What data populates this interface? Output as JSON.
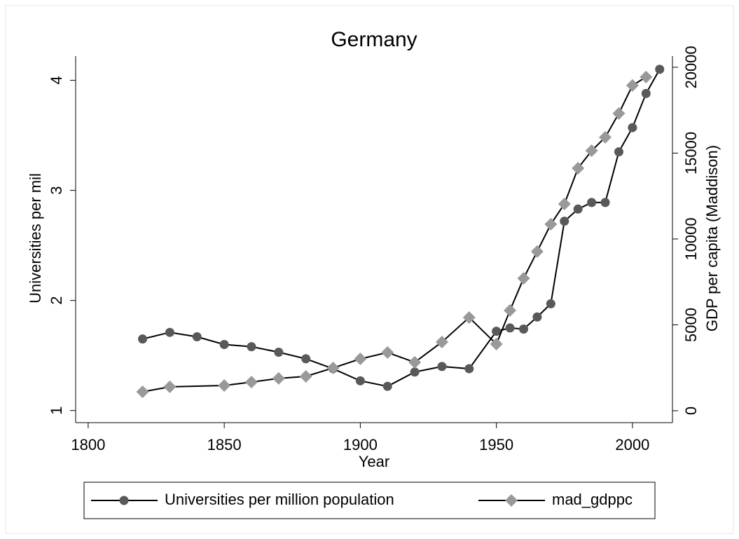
{
  "chart_data": {
    "type": "line",
    "title": "Germany",
    "x_label": "Year",
    "y_label": "Universities per mil",
    "y2_label": "GDP per capita (Maddison)",
    "xlim": [
      1795.4,
      2014.7
    ],
    "xticks": [
      1800,
      1850,
      1900,
      1950,
      2000
    ],
    "ylim": [
      0.89,
      4.22
    ],
    "yticks": [
      1,
      2,
      3,
      4
    ],
    "y2lim": [
      -694,
      20650
    ],
    "y2ticks": [
      0,
      5000,
      10000,
      15000,
      20000
    ],
    "legend": "bottom",
    "series": [
      {
        "name": "Universities per million population",
        "color": "#595959",
        "marker": "circle",
        "x": [
          1820,
          1830,
          1840,
          1850,
          1860,
          1870,
          1880,
          1890,
          1900,
          1910,
          1920,
          1930,
          1940,
          1950,
          1955,
          1960,
          1965,
          1970,
          1975,
          1980,
          1985,
          1990,
          1995,
          2000,
          2005,
          2010
        ],
        "values": [
          1.65,
          1.71,
          1.67,
          1.6,
          1.58,
          1.53,
          1.47,
          1.38,
          1.27,
          1.22,
          1.35,
          1.4,
          1.38,
          1.72,
          1.75,
          1.74,
          1.85,
          1.97,
          2.72,
          2.83,
          2.89,
          2.89,
          3.35,
          3.57,
          3.88,
          4.1
        ]
      },
      {
        "name": "mad_gdppc",
        "color": "#999999",
        "marker": "diamond",
        "axis": "y2",
        "x": [
          1820,
          1830,
          1850,
          1860,
          1870,
          1880,
          1890,
          1900,
          1910,
          1920,
          1930,
          1940,
          1950,
          1955,
          1960,
          1965,
          1970,
          1975,
          1980,
          1985,
          1990,
          1995,
          2000,
          2005
        ],
        "values": [
          1100,
          1390,
          1470,
          1670,
          1880,
          2000,
          2490,
          3020,
          3390,
          2820,
          4000,
          5430,
          3880,
          5840,
          7710,
          9270,
          10860,
          12040,
          14120,
          15140,
          15920,
          17310,
          18940,
          19430
        ]
      }
    ]
  }
}
